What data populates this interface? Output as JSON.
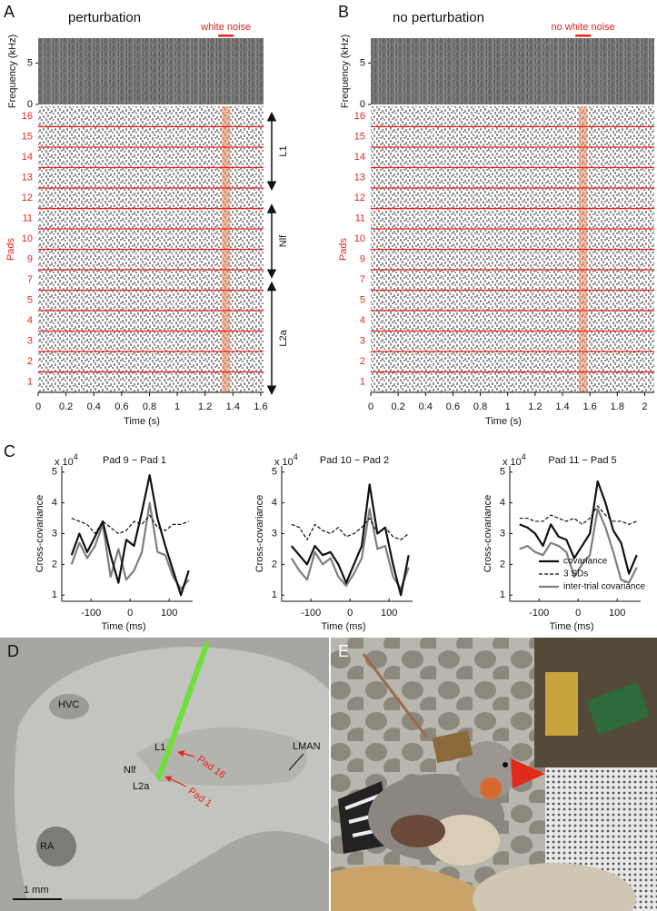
{
  "chart_data": [
    {
      "type": "raster",
      "panel": "A",
      "title": "perturbation",
      "annotation": "white noise",
      "freq_label": "Frequency (kHz)",
      "freq_ylim": [
        0,
        8
      ],
      "freq_yticks": [
        0,
        5
      ],
      "ylabel": "Pads",
      "categories": [
        "16",
        "15",
        "14",
        "13",
        "12",
        "11",
        "10",
        "9",
        "7",
        "5",
        "4",
        "3",
        "2",
        "1"
      ],
      "xlabel": "Time (s)",
      "xlim": [
        0,
        1.62
      ],
      "xticks": [
        0,
        0.2,
        0.4,
        0.6,
        0.8,
        1,
        1.2,
        1.4,
        1.6
      ],
      "highlight": [
        1.32,
        1.38
      ],
      "regions": [
        "L1",
        "Nlf",
        "L2a"
      ]
    },
    {
      "type": "raster",
      "panel": "B",
      "title": "no perturbation",
      "annotation": "no white noise",
      "freq_label": "Frequency (kHz)",
      "freq_ylim": [
        0,
        8
      ],
      "freq_yticks": [
        0,
        5
      ],
      "ylabel": "Pads",
      "categories": [
        "16",
        "15",
        "14",
        "13",
        "12",
        "11",
        "10",
        "9",
        "7",
        "5",
        "4",
        "3",
        "2",
        "1"
      ],
      "xlabel": "Time (s)",
      "xlim": [
        0,
        2.07
      ],
      "xticks": [
        0,
        0.2,
        0.4,
        0.6,
        0.8,
        1,
        1.2,
        1.4,
        1.6,
        1.8,
        2
      ],
      "highlight": [
        1.52,
        1.58
      ]
    },
    {
      "type": "line",
      "panel": "C",
      "title": "Pad 9 − Pad 1",
      "multiplier": "x 10",
      "exponent": "4",
      "ylabel": "Cross-covariance",
      "xlabel": "Time (ms)",
      "xlim": [
        -175,
        160
      ],
      "xticks": [
        -100,
        0,
        100
      ],
      "ylim": [
        0.8,
        5.2
      ],
      "yticks": [
        1,
        2,
        3,
        4,
        5
      ],
      "x": [
        -150,
        -130,
        -110,
        -90,
        -70,
        -50,
        -30,
        -10,
        10,
        30,
        50,
        70,
        90,
        110,
        130,
        150
      ],
      "series": [
        {
          "color": "#7f7f7f",
          "style": "solid",
          "values": [
            2.0,
            2.7,
            2.2,
            2.6,
            3.3,
            1.6,
            2.5,
            1.5,
            1.8,
            2.4,
            4.0,
            2.4,
            2.3,
            1.6,
            1.2,
            1.5
          ]
        },
        {
          "color": "#111111",
          "style": "dashed",
          "values": [
            3.5,
            3.4,
            3.3,
            3.0,
            3.4,
            3.2,
            3.0,
            3.1,
            3.4,
            3.3,
            3.6,
            3.2,
            3.1,
            3.3,
            3.3,
            3.4
          ]
        },
        {
          "color": "#111111",
          "style": "solid",
          "values": [
            2.3,
            3.0,
            2.4,
            2.9,
            3.4,
            2.3,
            1.4,
            2.8,
            2.6,
            3.7,
            4.9,
            3.5,
            2.6,
            1.8,
            1.0,
            1.8
          ]
        }
      ]
    },
    {
      "type": "line",
      "title": "Pad 10 − Pad 2",
      "multiplier": "x 10",
      "exponent": "4",
      "ylabel": "Cross-covariance",
      "xlabel": "Time (ms)",
      "xlim": [
        -175,
        160
      ],
      "xticks": [
        -100,
        0,
        100
      ],
      "ylim": [
        0.8,
        5.2
      ],
      "yticks": [
        1,
        2,
        3,
        4,
        5
      ],
      "x": [
        -150,
        -130,
        -110,
        -90,
        -70,
        -50,
        -30,
        -10,
        10,
        30,
        50,
        70,
        90,
        110,
        130,
        150
      ],
      "series": [
        {
          "color": "#7f7f7f",
          "style": "solid",
          "values": [
            2.2,
            1.8,
            1.5,
            2.4,
            2.0,
            2.2,
            1.6,
            1.3,
            1.7,
            2.2,
            3.8,
            2.5,
            2.6,
            1.6,
            1.2,
            1.9
          ]
        },
        {
          "color": "#111111",
          "style": "dashed",
          "values": [
            3.3,
            3.2,
            2.8,
            3.3,
            3.1,
            3.0,
            3.2,
            2.9,
            3.0,
            3.2,
            3.5,
            3.0,
            3.2,
            2.9,
            2.8,
            3.0
          ]
        },
        {
          "color": "#111111",
          "style": "solid",
          "values": [
            2.6,
            2.3,
            2.0,
            2.6,
            2.3,
            2.4,
            2.0,
            1.4,
            2.0,
            2.6,
            4.6,
            3.0,
            3.2,
            2.0,
            1.0,
            2.3
          ]
        }
      ]
    },
    {
      "type": "line",
      "title": "Pad 11 − Pad 5",
      "multiplier": "x 10",
      "exponent": "4",
      "ylabel": "Cross-covariance",
      "xlabel": "Time (ms)",
      "xlim": [
        -175,
        160
      ],
      "xticks": [
        -100,
        0,
        100
      ],
      "ylim": [
        0.8,
        5.2
      ],
      "yticks": [
        1,
        2,
        3,
        4,
        5
      ],
      "legend": "lower right",
      "x": [
        -150,
        -130,
        -110,
        -90,
        -70,
        -50,
        -30,
        -10,
        10,
        30,
        50,
        70,
        90,
        110,
        130,
        150
      ],
      "series": [
        {
          "name": "inter-trial covariance",
          "color": "#7f7f7f",
          "style": "solid",
          "values": [
            2.5,
            2.6,
            2.4,
            2.3,
            2.7,
            2.6,
            2.4,
            1.6,
            2.0,
            2.3,
            3.8,
            3.2,
            2.4,
            1.5,
            1.4,
            1.9
          ]
        },
        {
          "name": "3 SDs",
          "color": "#111111",
          "style": "dashed",
          "values": [
            3.5,
            3.5,
            3.4,
            3.4,
            3.6,
            3.5,
            3.4,
            3.5,
            3.3,
            3.5,
            3.9,
            3.6,
            3.4,
            3.4,
            3.3,
            3.4
          ]
        },
        {
          "name": "covariance",
          "color": "#111111",
          "style": "solid",
          "values": [
            3.3,
            3.2,
            3.0,
            2.6,
            3.3,
            2.9,
            2.8,
            2.2,
            2.6,
            3.0,
            4.7,
            4.0,
            3.1,
            2.7,
            1.7,
            2.3
          ]
        }
      ]
    }
  ],
  "panel_d": {
    "letter": "D",
    "labels": [
      "HVC",
      "RA",
      "Nlf",
      "L1",
      "L2a",
      "Pad 16",
      "Pad 1",
      "LMAN"
    ],
    "scale_bar": "1 mm"
  },
  "panel_e": {
    "letter": "E"
  }
}
